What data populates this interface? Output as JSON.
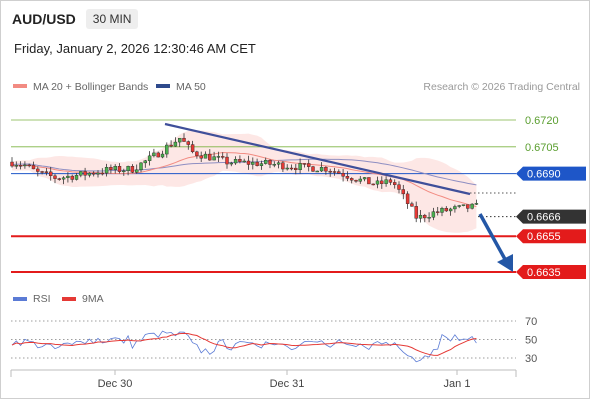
{
  "header": {
    "pair": "AUD/USD",
    "timeframe": "30 MIN",
    "datetime": "Friday, January 2, 2026 12:30:46 AM CET"
  },
  "legend": {
    "ma20": "MA 20 + Bollinger Bands",
    "ma50": "MA 50",
    "research": "Research © 2026 Trading Central",
    "ma20_color": "#f28b82",
    "ma50_color": "#2e4a8c"
  },
  "rsi_legend": {
    "rsi": "RSI",
    "ma9": "9MA",
    "rsi_color": "#5b7bd5",
    "ma9_color": "#e53935"
  },
  "chart_data": [
    {
      "type": "candlestick",
      "panel": "price",
      "yticks": [
        "0.6720",
        "0.6705",
        "0.6690",
        "0.6666",
        "0.6655",
        "0.6635"
      ],
      "levels": [
        {
          "value": 0.672,
          "label": "0.6720",
          "kind": "target",
          "color": "#7cb342"
        },
        {
          "value": 0.6705,
          "label": "0.6705",
          "kind": "target",
          "color": "#7cb342"
        },
        {
          "value": 0.669,
          "label": "0.6690",
          "kind": "pivot",
          "color": "#1e56c8"
        },
        {
          "value": 0.6666,
          "label": "0.6666",
          "kind": "last",
          "color": "#333333"
        },
        {
          "value": 0.6655,
          "label": "0.6655",
          "kind": "support",
          "color": "#e31b1b"
        },
        {
          "value": 0.6635,
          "label": "0.6635",
          "kind": "support",
          "color": "#e31b1b"
        }
      ],
      "xticks": [
        "Dec 30",
        "Dec 31",
        "Jan 1"
      ],
      "indicators": [
        "MA 20",
        "Bollinger Bands",
        "MA 50"
      ],
      "annotations": [
        "downtrend line",
        "bearish arrow toward 0.6635"
      ]
    },
    {
      "type": "line",
      "panel": "rsi",
      "yticks": [
        "70",
        "50",
        "30"
      ],
      "series": [
        {
          "name": "RSI",
          "color": "#5b7bd5"
        },
        {
          "name": "9MA",
          "color": "#e53935"
        }
      ]
    }
  ]
}
